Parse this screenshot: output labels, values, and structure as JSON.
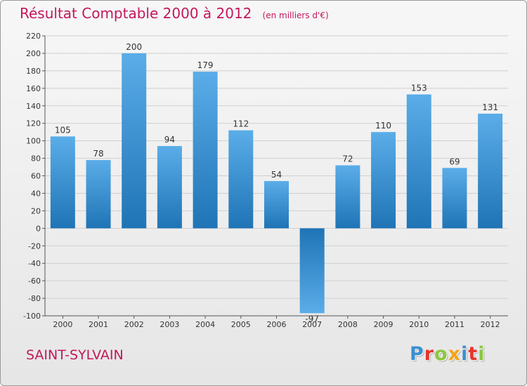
{
  "header": {
    "title": "Résultat Comptable 2000 à 2012",
    "units": "(en milliers d'€)"
  },
  "footer": {
    "commune": "SAINT-SYLVAIN",
    "brand": "Proxiti",
    "brand_letters": [
      {
        "ch": "P",
        "color": "#3a8fd1"
      },
      {
        "ch": "r",
        "color": "#e6342b"
      },
      {
        "ch": "o",
        "color": "#8cc63f"
      },
      {
        "ch": "x",
        "color": "#f5a31a"
      },
      {
        "ch": "i",
        "color": "#3a8fd1"
      },
      {
        "ch": "t",
        "color": "#e6342b"
      },
      {
        "ch": "i",
        "color": "#8cc63f"
      }
    ]
  },
  "chart_data": {
    "type": "bar",
    "title": "Résultat Comptable 2000 à 2012",
    "subtitle": "(en milliers d'€)",
    "xlabel": "",
    "ylabel": "",
    "categories": [
      "2000",
      "2001",
      "2002",
      "2003",
      "2004",
      "2005",
      "2006",
      "2007",
      "2008",
      "2009",
      "2010",
      "2011",
      "2012"
    ],
    "values": [
      105,
      78,
      200,
      94,
      179,
      112,
      54,
      -97,
      72,
      110,
      153,
      69,
      131
    ],
    "ylim": [
      -100,
      220
    ],
    "yticks": [
      -100,
      -80,
      -60,
      -40,
      -20,
      0,
      20,
      40,
      60,
      80,
      100,
      120,
      140,
      160,
      180,
      200,
      220
    ],
    "grid": true,
    "colors": {
      "bar_light": "#5aade8",
      "bar_dark": "#1f74b6",
      "grid": "#cfcfcf",
      "axis": "#555555",
      "label": "#333333"
    }
  }
}
